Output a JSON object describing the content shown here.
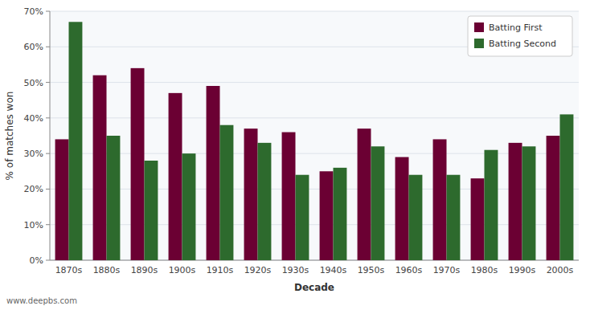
{
  "chart_data": {
    "type": "bar",
    "categories": [
      "1870s",
      "1880s",
      "1890s",
      "1900s",
      "1910s",
      "1920s",
      "1930s",
      "1940s",
      "1950s",
      "1960s",
      "1970s",
      "1980s",
      "1990s",
      "2000s"
    ],
    "series": [
      {
        "name": "Batting First",
        "color": "#6B0033",
        "values": [
          34,
          52,
          54,
          47,
          49,
          37,
          36,
          25,
          37,
          29,
          34,
          23,
          33,
          35
        ]
      },
      {
        "name": "Batting Second",
        "color": "#2D6A2D",
        "values": [
          67,
          35,
          28,
          30,
          38,
          33,
          24,
          26,
          32,
          24,
          24,
          31,
          32,
          41
        ]
      }
    ],
    "x_label": "Decade",
    "y_label": "% of matches won",
    "annotations": [
      "www.deepbs.com"
    ],
    "ylim": [
      0,
      70
    ],
    "yticks": [
      {
        "value": 0,
        "label": "0%"
      },
      {
        "value": 10,
        "label": "10%"
      },
      {
        "value": 20,
        "label": "20%"
      },
      {
        "value": 30,
        "label": "30%"
      },
      {
        "value": 40,
        "label": "40%"
      },
      {
        "value": 50,
        "label": "50%"
      },
      {
        "value": 60,
        "label": "60%"
      },
      {
        "value": 70,
        "label": "70%"
      }
    ],
    "grid": true,
    "legend": "top-right"
  }
}
